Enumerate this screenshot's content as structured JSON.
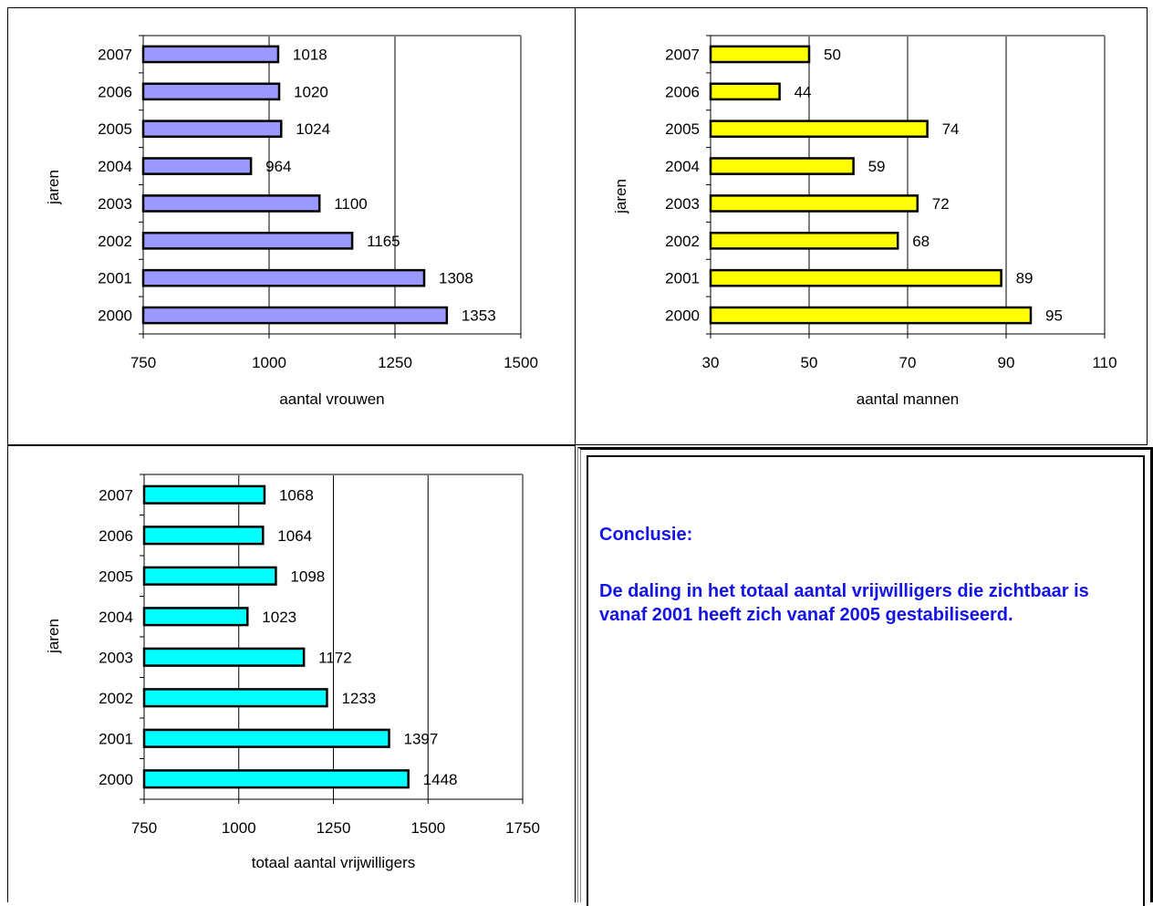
{
  "chart_data": [
    {
      "type": "bar",
      "orientation": "horizontal",
      "categories": [
        "2000",
        "2001",
        "2002",
        "2003",
        "2004",
        "2005",
        "2006",
        "2007"
      ],
      "values": [
        1353,
        1308,
        1165,
        1100,
        964,
        1024,
        1020,
        1018
      ],
      "xlabel": "aantal vrouwen",
      "ylabel": "jaren",
      "xlim": [
        750,
        1500
      ],
      "xticks": [
        "750",
        "1000",
        "1250",
        "1500"
      ],
      "bar_color": "#9999ff",
      "grid": "vertical"
    },
    {
      "type": "bar",
      "orientation": "horizontal",
      "categories": [
        "2000",
        "2001",
        "2002",
        "2003",
        "2004",
        "2005",
        "2006",
        "2007"
      ],
      "values": [
        95,
        89,
        68,
        72,
        59,
        74,
        44,
        50
      ],
      "xlabel": "aantal mannen",
      "ylabel": "jaren",
      "xlim": [
        30,
        110
      ],
      "xticks": [
        "30",
        "50",
        "70",
        "90",
        "110"
      ],
      "bar_color": "#ffff00",
      "grid": "vertical"
    },
    {
      "type": "bar",
      "orientation": "horizontal",
      "categories": [
        "2000",
        "2001",
        "2002",
        "2003",
        "2004",
        "2005",
        "2006",
        "2007"
      ],
      "values": [
        1448,
        1397,
        1233,
        1172,
        1023,
        1098,
        1064,
        1068
      ],
      "xlabel": "totaal aantal vrijwilligers",
      "ylabel": "jaren",
      "xlim": [
        750,
        1750
      ],
      "xticks": [
        "750",
        "1000",
        "1250",
        "1500",
        "1750"
      ],
      "bar_color": "#00ffff",
      "grid": "vertical"
    }
  ],
  "conclusion": {
    "heading": "Conclusie:",
    "body": "De daling in het totaal aantal vrijwilligers die zichtbaar is vanaf 2001 heeft zich vanaf 2005 gestabiliseerd.",
    "color": "#1414e6"
  }
}
